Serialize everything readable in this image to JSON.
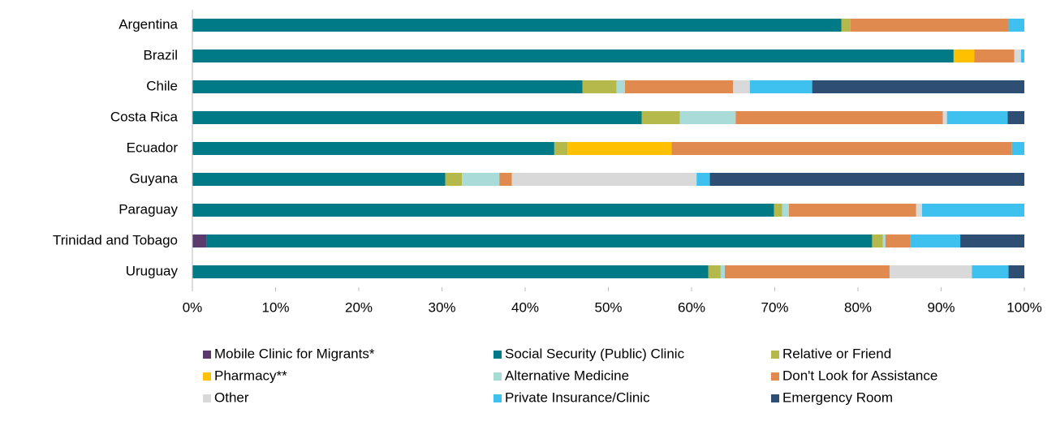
{
  "chart_data": {
    "type": "stacked_bar_horizontal",
    "categories": [
      "Argentina",
      "Brazil",
      "Chile",
      "Costa Rica",
      "Ecuador",
      "Guyana",
      "Paraguay",
      "Trinidad and Tobago",
      "Uruguay"
    ],
    "series": [
      {
        "name": "Mobile Clinic for Migrants*",
        "color": "#5b3a6e",
        "values": [
          0,
          0,
          0,
          0,
          0,
          0,
          0,
          1.7,
          0
        ]
      },
      {
        "name": "Social Security (Public) Clinic",
        "color": "#007a87",
        "values": [
          78.0,
          91.5,
          46.9,
          54.0,
          43.5,
          30.4,
          69.9,
          80.0,
          62.0
        ]
      },
      {
        "name": "Relative or Friend",
        "color": "#b5b84a",
        "values": [
          1.1,
          0,
          4.1,
          4.6,
          1.6,
          2.0,
          1.0,
          1.3,
          1.5
        ]
      },
      {
        "name": "Pharmacy**",
        "color": "#ffc000",
        "values": [
          0,
          2.5,
          0,
          0,
          12.5,
          0,
          0,
          0,
          0
        ]
      },
      {
        "name": "Alternative Medicine",
        "color": "#a9dcd9",
        "values": [
          0,
          0,
          1.0,
          6.7,
          0,
          4.5,
          0.8,
          0.3,
          0.5
        ]
      },
      {
        "name": "Don't Look for Assistance",
        "color": "#e08a50",
        "values": [
          19.0,
          4.8,
          13.0,
          24.9,
          40.9,
          1.5,
          15.3,
          3.0,
          19.8
        ]
      },
      {
        "name": "Other",
        "color": "#d9d9d9",
        "values": [
          0,
          0.8,
          2.0,
          0.5,
          0,
          22.2,
          0.7,
          0,
          9.9
        ]
      },
      {
        "name": "Private Insurance/Clinic",
        "color": "#3fc1ef",
        "values": [
          1.9,
          0.4,
          7.5,
          7.3,
          1.5,
          1.6,
          12.3,
          6.0,
          4.4
        ]
      },
      {
        "name": "Emergency Room",
        "color": "#2e4e73",
        "values": [
          0,
          0,
          25.5,
          2.0,
          0,
          37.8,
          0,
          7.7,
          1.9
        ]
      }
    ],
    "xlim": [
      0,
      100
    ],
    "xticks": [
      {
        "value": 0,
        "label": "0%"
      },
      {
        "value": 10,
        "label": "10%"
      },
      {
        "value": 20,
        "label": "20%"
      },
      {
        "value": 30,
        "label": "30%"
      },
      {
        "value": 40,
        "label": "40%"
      },
      {
        "value": 50,
        "label": "50%"
      },
      {
        "value": 60,
        "label": "60%"
      },
      {
        "value": 70,
        "label": "70%"
      },
      {
        "value": 80,
        "label": "80%"
      },
      {
        "value": 90,
        "label": "90%"
      },
      {
        "value": 100,
        "label": "100%"
      }
    ],
    "legend": "bottom"
  }
}
